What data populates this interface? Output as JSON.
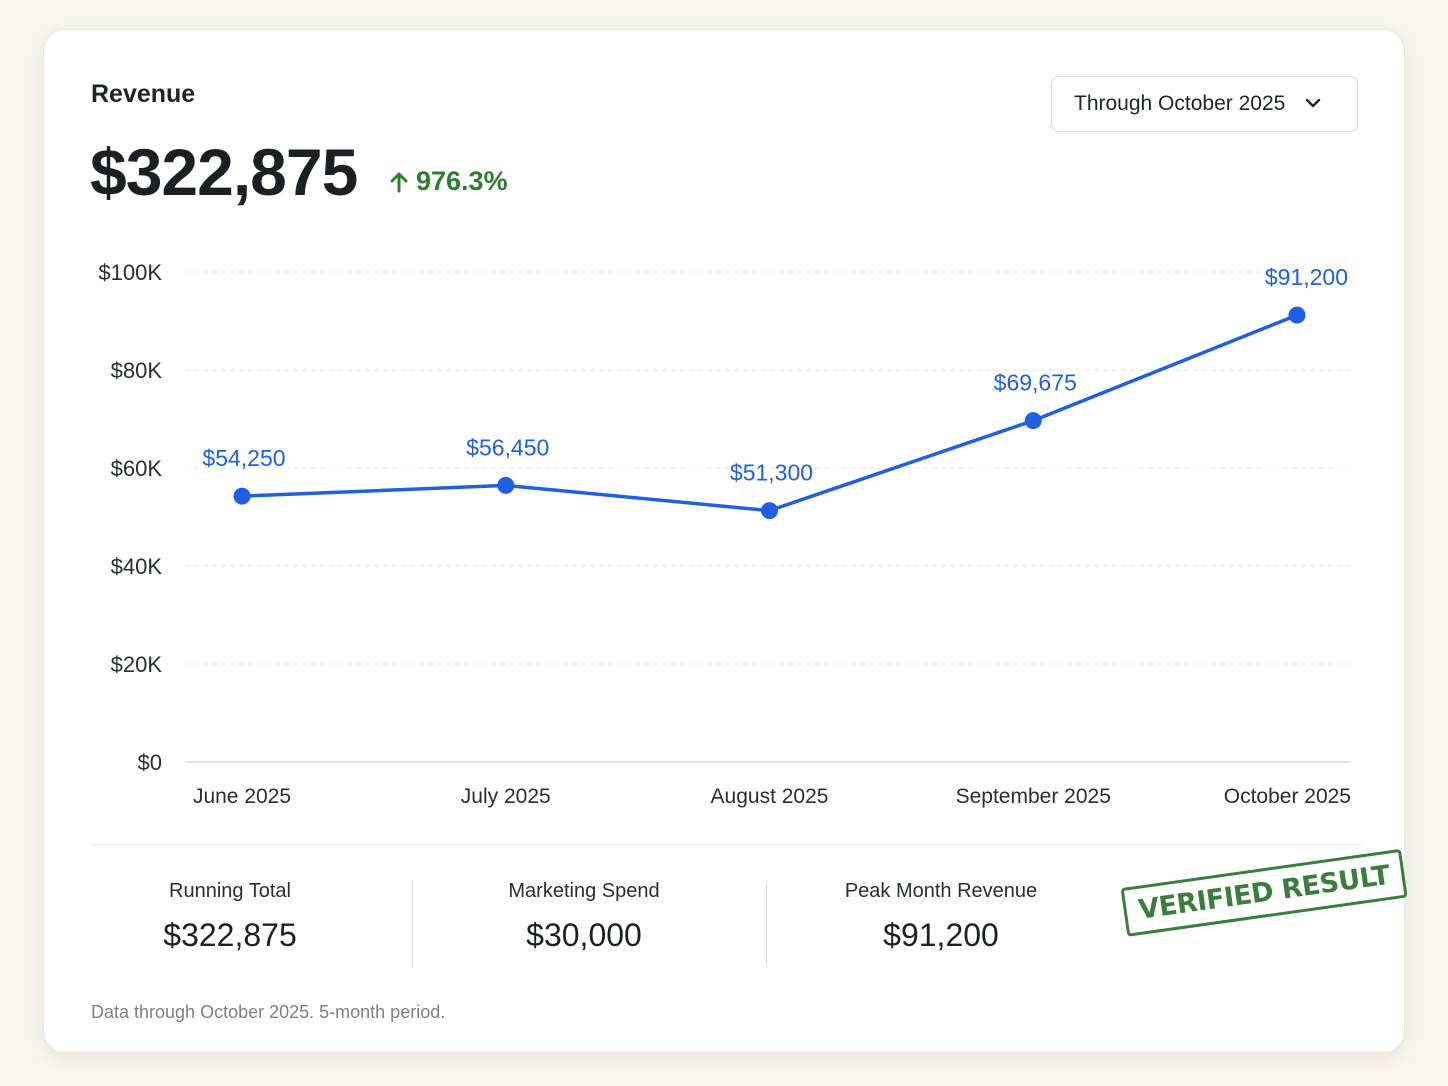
{
  "header": {
    "title": "Revenue",
    "total": "$322,875",
    "change": "976.3%",
    "change_color": "#2e7d32",
    "period": "Through October 2025"
  },
  "chart_data": {
    "type": "line",
    "categories": [
      "June 2025",
      "July 2025",
      "August 2025",
      "September 2025",
      "October 2025"
    ],
    "series": [
      {
        "values": [
          54250,
          56450,
          51300,
          69675,
          91200
        ],
        "point_labels": [
          "$54,250",
          "$56,450",
          "$51,300",
          "$69,675",
          "$91,200"
        ],
        "color": "#1f5fe0"
      }
    ],
    "ylim": [
      0,
      100000
    ],
    "yticks": [
      0,
      20000,
      40000,
      60000,
      80000,
      100000
    ],
    "ytick_labels": [
      "$0",
      "$20K",
      "$40K",
      "$60K",
      "$80K",
      "$100K"
    ],
    "grid": true,
    "grid_style": "dashed",
    "title": "",
    "xlabel": "",
    "ylabel": ""
  },
  "stats": [
    {
      "label": "Running Total",
      "value": "$322,875"
    },
    {
      "label": "Marketing Spend",
      "value": "$30,000"
    },
    {
      "label": "Peak Month Revenue",
      "value": "$91,200"
    }
  ],
  "stamp": "VERIFIED RESULT",
  "stamp_color": "#3a7d3c",
  "footnote": "Data through October 2025. 5-month period."
}
